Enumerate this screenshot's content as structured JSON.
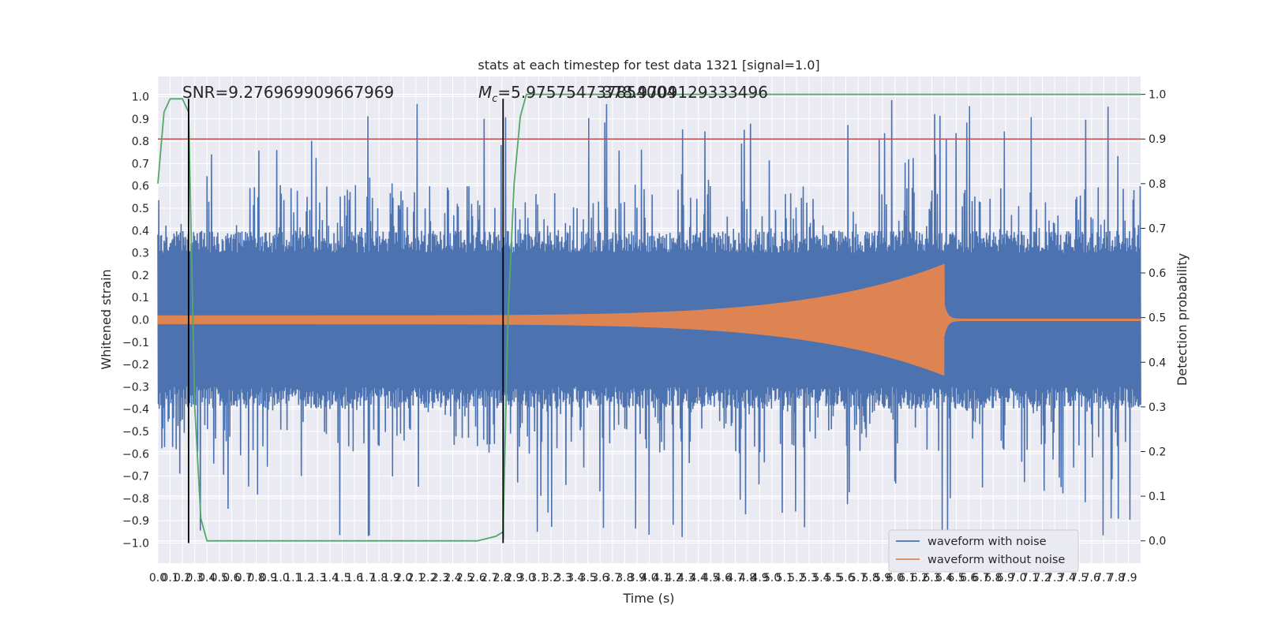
{
  "chart_data": {
    "type": "line",
    "title": "stats at each timestep for test data 1321 [signal=1.0]",
    "xlabel": "Time (s)",
    "ylabel": "Whitened strain",
    "y2label": "Detection probability",
    "xlim": [
      0.0,
      8.0
    ],
    "ylim": [
      -1.09,
      1.09
    ],
    "y2lim": [
      -0.05,
      1.04
    ],
    "grid": true,
    "legend_position": "lower-right",
    "xticks": [
      "0.0",
      "0.1",
      "0.2",
      "0.3",
      "0.4",
      "0.5",
      "0.6",
      "0.7",
      "0.8",
      "0.9",
      "1.0",
      "1.1",
      "1.2",
      "1.3",
      "1.4",
      "1.5",
      "1.6",
      "1.7",
      "1.8",
      "1.9",
      "2.0",
      "2.1",
      "2.2",
      "2.3",
      "2.4",
      "2.5",
      "2.6",
      "2.7",
      "2.8",
      "2.9",
      "3.0",
      "3.1",
      "3.2",
      "3.3",
      "3.4",
      "3.5",
      "3.6",
      "3.7",
      "3.8",
      "3.9",
      "4.0",
      "4.1",
      "4.2",
      "4.3",
      "4.4",
      "4.5",
      "4.6",
      "4.7",
      "4.8",
      "4.9",
      "5.0",
      "5.1",
      "5.2",
      "5.3",
      "5.4",
      "5.5",
      "5.6",
      "5.7",
      "5.8",
      "5.9",
      "6.0",
      "6.1",
      "6.2",
      "6.3",
      "6.4",
      "6.5",
      "6.6",
      "6.7",
      "6.8",
      "6.9",
      "7.0",
      "7.1",
      "7.2",
      "7.3",
      "7.4",
      "7.5",
      "7.6",
      "7.7",
      "7.8",
      "7.9"
    ],
    "yticks": [
      "1.0",
      "0.9",
      "0.8",
      "0.7",
      "0.6",
      "0.5",
      "0.4",
      "0.3",
      "0.2",
      "0.1",
      "0.0",
      "−0.1",
      "−0.2",
      "−0.3",
      "−0.4",
      "−0.5",
      "−0.6",
      "−0.7",
      "−0.8",
      "−0.9",
      "−1.0"
    ],
    "y2ticks": [
      "1.0",
      "0.9",
      "0.8",
      "0.7",
      "0.6",
      "0.5",
      "0.4",
      "0.3",
      "0.2",
      "0.1",
      "0.0"
    ],
    "annotations": {
      "snr": "SNR=9.276969909667969",
      "mc_symbol": "M",
      "mc_sub": "c",
      "mc_value": "=5.975754737854004",
      "mc_overlap": "378.9709129333496"
    },
    "vlines_x": [
      0.25,
      2.81
    ],
    "threshold_y2": 0.9,
    "series": [
      {
        "name": "waveform with noise",
        "color": "#4c72b0",
        "kind": "noisy",
        "x_range": [
          0.0,
          8.0
        ],
        "samples": 2200,
        "band": [
          -0.4,
          0.4
        ],
        "extreme_range": [
          -0.98,
          0.99
        ]
      },
      {
        "name": "waveform without noise",
        "color": "#dd8452",
        "kind": "chirp",
        "start_amp": 0.02,
        "peak_amp": 0.25,
        "merger_x": 6.4,
        "ringdown_amp": 0.005
      },
      {
        "name": "",
        "color": "#55a868",
        "axis": "y2",
        "x": [
          0.0,
          0.05,
          0.1,
          0.15,
          0.2,
          0.25,
          0.3,
          0.35,
          0.4,
          2.6,
          2.75,
          2.81,
          2.85,
          2.9,
          2.95,
          3.0,
          8.0
        ],
        "y": [
          0.8,
          0.96,
          0.99,
          0.99,
          0.99,
          0.96,
          0.3,
          0.05,
          0.0,
          0.0,
          0.01,
          0.02,
          0.5,
          0.8,
          0.95,
          1.0,
          1.0
        ]
      }
    ],
    "colors": {
      "plot_bg": "#eaeaf2",
      "grid": "#ffffff",
      "threshold": "#c44e52",
      "vline": "#000000"
    }
  }
}
